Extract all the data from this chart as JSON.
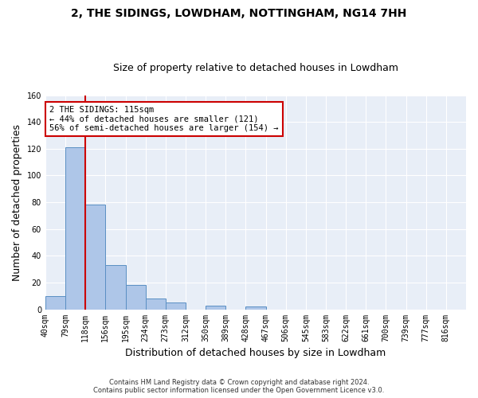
{
  "title": "2, THE SIDINGS, LOWDHAM, NOTTINGHAM, NG14 7HH",
  "subtitle": "Size of property relative to detached houses in Lowdham",
  "xlabel": "Distribution of detached houses by size in Lowdham",
  "ylabel": "Number of detached properties",
  "bar_labels": [
    "40sqm",
    "79sqm",
    "118sqm",
    "156sqm",
    "195sqm",
    "234sqm",
    "273sqm",
    "312sqm",
    "350sqm",
    "389sqm",
    "428sqm",
    "467sqm",
    "506sqm",
    "545sqm",
    "583sqm",
    "622sqm",
    "661sqm",
    "700sqm",
    "739sqm",
    "777sqm",
    "816sqm"
  ],
  "bar_values": [
    10,
    121,
    78,
    33,
    18,
    8,
    5,
    0,
    3,
    0,
    2,
    0,
    0,
    0,
    0,
    0,
    0,
    0,
    0,
    0,
    0
  ],
  "bar_color": "#aec6e8",
  "bar_edge_color": "#5a8fc3",
  "background_color": "#e8eef7",
  "grid_color": "#ffffff",
  "vline_index": 2,
  "vline_color": "#cc0000",
  "ylim": [
    0,
    160
  ],
  "yticks": [
    0,
    20,
    40,
    60,
    80,
    100,
    120,
    140,
    160
  ],
  "annotation_line1": "2 THE SIDINGS: 115sqm",
  "annotation_line2": "← 44% of detached houses are smaller (121)",
  "annotation_line3": "56% of semi-detached houses are larger (154) →",
  "annotation_box_color": "#cc0000",
  "footer_line1": "Contains HM Land Registry data © Crown copyright and database right 2024.",
  "footer_line2": "Contains public sector information licensed under the Open Government Licence v3.0.",
  "title_fontsize": 10,
  "subtitle_fontsize": 9,
  "ylabel_fontsize": 9,
  "xlabel_fontsize": 9
}
